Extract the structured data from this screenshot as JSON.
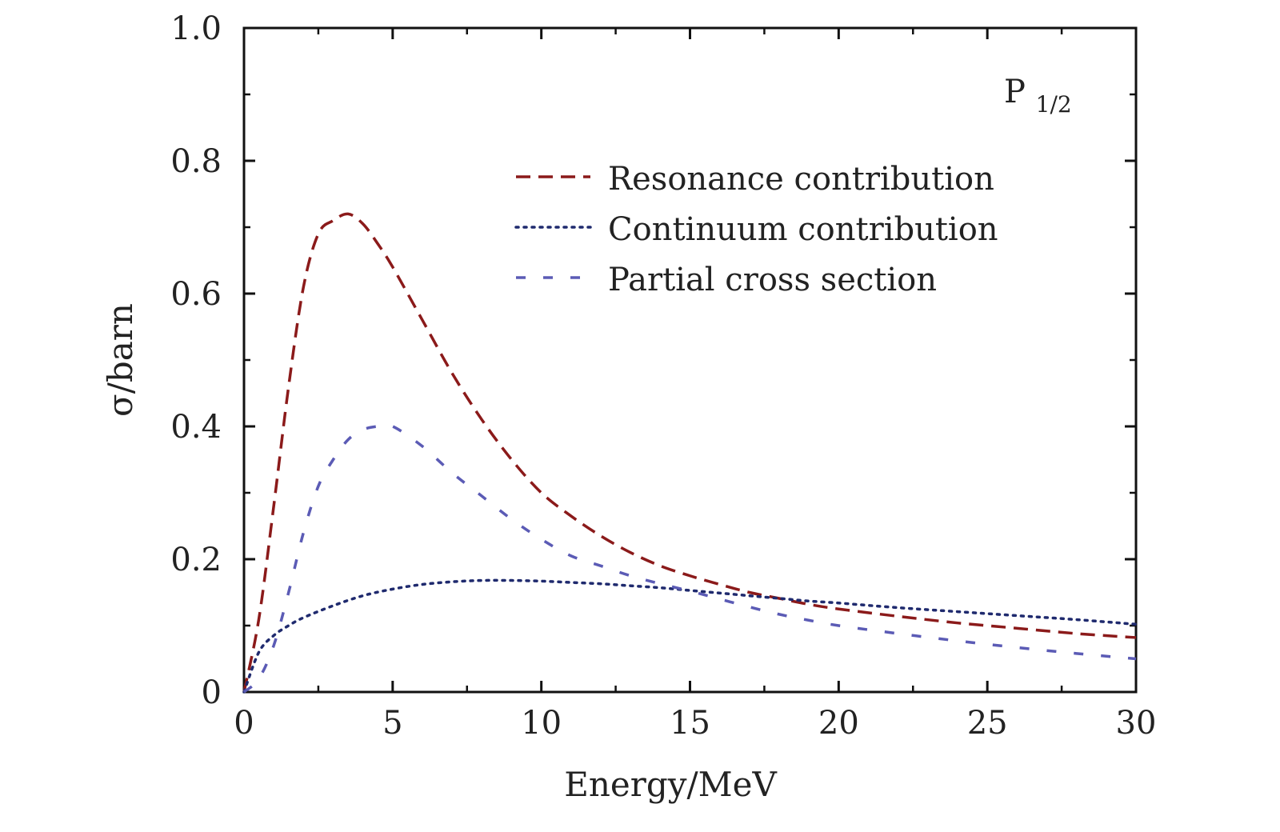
{
  "chart_data": {
    "type": "line",
    "title": "",
    "xlabel": "Energy/MeV",
    "ylabel": "σ/barn",
    "xlim": [
      0,
      30
    ],
    "ylim": [
      0,
      1.0
    ],
    "x_ticks": [
      0,
      5,
      10,
      15,
      20,
      25,
      30
    ],
    "x_tick_labels": [
      "0",
      "5",
      "10",
      "15",
      "20",
      "25",
      "30"
    ],
    "y_ticks": [
      0,
      0.2,
      0.4,
      0.6,
      0.8,
      1.0
    ],
    "y_tick_labels": [
      "0",
      "0.2",
      "0.4",
      "0.6",
      "0.8",
      "1.0"
    ],
    "grid": false,
    "legend_position": "upper-right",
    "annotation": {
      "main": "P",
      "sub": "1/2"
    },
    "series": [
      {
        "name": "Resonance contribution",
        "color": "#8b1a1a",
        "style": "dashed",
        "x": [
          0,
          0.5,
          1,
          1.5,
          2,
          2.5,
          3,
          3.5,
          4,
          4.5,
          5,
          6,
          7,
          8,
          9,
          10,
          11,
          12,
          13,
          14,
          15,
          16,
          17,
          18,
          19,
          20,
          22,
          24,
          26,
          28,
          30
        ],
        "y": [
          0,
          0.11,
          0.28,
          0.46,
          0.61,
          0.69,
          0.71,
          0.72,
          0.705,
          0.675,
          0.64,
          0.56,
          0.48,
          0.41,
          0.35,
          0.3,
          0.265,
          0.235,
          0.21,
          0.19,
          0.175,
          0.162,
          0.15,
          0.141,
          0.132,
          0.125,
          0.114,
          0.104,
          0.096,
          0.088,
          0.082
        ]
      },
      {
        "name": "Continuum contribution",
        "color": "#1f2a6e",
        "style": "dotted",
        "x": [
          0,
          0.5,
          1,
          1.5,
          2,
          3,
          4,
          5,
          6,
          7,
          8,
          9,
          10,
          11,
          12,
          13,
          14,
          15,
          16,
          17,
          18,
          19,
          20,
          22,
          24,
          26,
          28,
          30
        ],
        "y": [
          0,
          0.06,
          0.085,
          0.1,
          0.112,
          0.13,
          0.145,
          0.155,
          0.162,
          0.166,
          0.168,
          0.168,
          0.167,
          0.165,
          0.163,
          0.16,
          0.157,
          0.153,
          0.149,
          0.145,
          0.141,
          0.137,
          0.134,
          0.127,
          0.121,
          0.115,
          0.109,
          0.102
        ]
      },
      {
        "name": "Partial cross section",
        "color": "#5b5bb5",
        "style": "dashed-sparse",
        "x": [
          0,
          0.5,
          1,
          1.5,
          2,
          2.5,
          3,
          3.5,
          4,
          4.5,
          5,
          6,
          7,
          8,
          9,
          10,
          11,
          12,
          13,
          14,
          15,
          16,
          17,
          18,
          19,
          20,
          22,
          24,
          26,
          28,
          30
        ],
        "y": [
          0,
          0.02,
          0.07,
          0.15,
          0.24,
          0.31,
          0.35,
          0.38,
          0.395,
          0.4,
          0.4,
          0.37,
          0.33,
          0.295,
          0.26,
          0.23,
          0.205,
          0.19,
          0.175,
          0.163,
          0.152,
          0.14,
          0.128,
          0.117,
          0.108,
          0.1,
          0.088,
          0.077,
          0.067,
          0.058,
          0.05
        ]
      }
    ]
  }
}
